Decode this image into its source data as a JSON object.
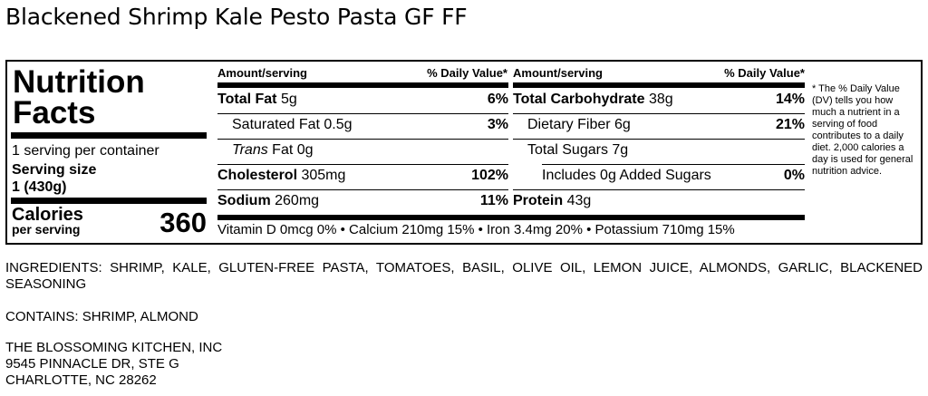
{
  "product": {
    "title": "Blackened Shrimp Kale Pesto Pasta GF FF"
  },
  "nutrition": {
    "heading_line1": "Nutrition",
    "heading_line2": "Facts",
    "servings_per_container": "1 serving per container",
    "serving_size_label": "Serving size",
    "serving_size_value": "1 (430g)",
    "calories_label": "Calories",
    "calories_sub": "per serving",
    "calories_value": "360",
    "col_headers": {
      "amount": "Amount/serving",
      "dv": "% Daily Value*"
    },
    "left_rows": [
      {
        "name_bold": "Total Fat",
        "amount": "5g",
        "dv": "6%"
      },
      {
        "name": "Saturated Fat",
        "amount": "0.5g",
        "dv": "3%"
      },
      {
        "name_italic": "Trans",
        "name": "Fat",
        "amount": "0g",
        "dv": ""
      },
      {
        "name_bold": "Cholesterol",
        "amount": "305mg",
        "dv": "102%"
      },
      {
        "name_bold": "Sodium",
        "amount": "260mg",
        "dv": "11%"
      }
    ],
    "right_rows": [
      {
        "name_bold": "Total Carbohydrate",
        "amount": "38g",
        "dv": "14%"
      },
      {
        "name": "Dietary Fiber",
        "amount": "6g",
        "dv": "21%"
      },
      {
        "name": "Total Sugars",
        "amount": "7g",
        "dv": ""
      },
      {
        "name": "Includes 0g Added Sugars",
        "amount": "",
        "dv": "0%"
      },
      {
        "name_bold": "Protein",
        "amount": "43g",
        "dv": ""
      }
    ],
    "vitamins": "Vitamin D 0mcg 0% • Calcium 210mg 15% • Iron 3.4mg 20% • Potassium 710mg 15%",
    "footnote": "* The % Daily Value (DV) tells you how much a nutrient in a serving of food contributes to a daily diet. 2,000 calories a day is used for general nutrition advice."
  },
  "ingredients": "INGREDIENTS: SHRIMP, KALE, GLUTEN-FREE PASTA, TOMATOES, BASIL, OLIVE OIL, LEMON JUICE, ALMONDS, GARLIC, BLACKENED SEASONING",
  "contains": "CONTAINS: SHRIMP, ALMOND",
  "address": {
    "line1": "THE BLOSSOMING KITCHEN, INC",
    "line2": "9545 PINNACLE DR, STE G",
    "line3": "CHARLOTTE, NC 28262"
  }
}
